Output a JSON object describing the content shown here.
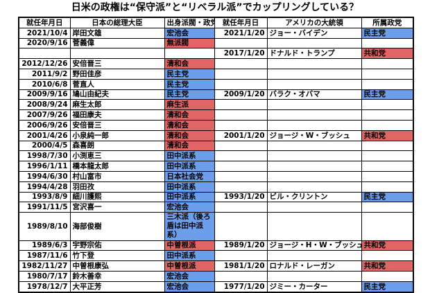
{
  "colors": {
    "conservative_red": "#E06666",
    "liberal_blue": "#6D9EEB",
    "border": "#000000",
    "background": "#FFFFFF"
  },
  "chart_data": {
    "type": "table",
    "title": "日米の政権は“保守派”と“リベラル派”でカップリングしている？",
    "columns": [
      "就任年月日",
      "日本の総理大臣",
      "出身派閥・政党",
      "就任年月日",
      "アメリカの大統領",
      "所属政党"
    ],
    "color_coding": {
      "red": "conservative",
      "blue": "liberal"
    },
    "rows": [
      {
        "jp_date": "2021/10/4",
        "jp_pm": "岸田文雄",
        "jp_faction": "宏池会",
        "jp_color": "blue",
        "us_date": "2021/1/20",
        "us_president": "ジョー・バイデン",
        "us_party": "民主党",
        "us_color": "blue",
        "tall": false
      },
      {
        "jp_date": "2020/9/16",
        "jp_pm": "菅義偉",
        "jp_faction": "無派閥",
        "jp_color": "red",
        "us_date": "",
        "us_president": "",
        "us_party": "",
        "us_color": "",
        "tall": false
      },
      {
        "jp_date": "",
        "jp_pm": "",
        "jp_faction": "",
        "jp_color": "",
        "us_date": "2017/1/20",
        "us_president": "ドナルド・トランプ",
        "us_party": "共和党",
        "us_color": "red",
        "tall": false
      },
      {
        "jp_date": "2012/12/26",
        "jp_pm": "安倍晋三",
        "jp_faction": "清和会",
        "jp_color": "red",
        "us_date": "",
        "us_president": "",
        "us_party": "",
        "us_color": "",
        "tall": false
      },
      {
        "jp_date": "2011/9/2",
        "jp_pm": "野田佳彦",
        "jp_faction": "民主党",
        "jp_color": "blue",
        "us_date": "",
        "us_president": "",
        "us_party": "",
        "us_color": "",
        "tall": false
      },
      {
        "jp_date": "2010/6/8",
        "jp_pm": "菅直人",
        "jp_faction": "民主党",
        "jp_color": "blue",
        "us_date": "",
        "us_president": "",
        "us_party": "",
        "us_color": "",
        "tall": false
      },
      {
        "jp_date": "2009/9/16",
        "jp_pm": "鳩山由紀夫",
        "jp_faction": "民主党",
        "jp_color": "blue",
        "us_date": "2009/1/20",
        "us_president": "バラク・オバマ",
        "us_party": "民主党",
        "us_color": "blue",
        "tall": false
      },
      {
        "jp_date": "2008/9/24",
        "jp_pm": "麻生太郎",
        "jp_faction": "麻生派",
        "jp_color": "red",
        "us_date": "",
        "us_president": "",
        "us_party": "",
        "us_color": "",
        "tall": false
      },
      {
        "jp_date": "2007/9/26",
        "jp_pm": "福田康夫",
        "jp_faction": "清和会",
        "jp_color": "red",
        "us_date": "",
        "us_president": "",
        "us_party": "",
        "us_color": "",
        "tall": false
      },
      {
        "jp_date": "2006/9/26",
        "jp_pm": "安倍晋三",
        "jp_faction": "清和会",
        "jp_color": "red",
        "us_date": "",
        "us_president": "",
        "us_party": "",
        "us_color": "",
        "tall": false
      },
      {
        "jp_date": "2001/4/26",
        "jp_pm": "小泉純一郎",
        "jp_faction": "清和会",
        "jp_color": "red",
        "us_date": "2001/1/20",
        "us_president": "ジョージ・W・ブッシュ",
        "us_party": "共和党",
        "us_color": "red",
        "tall": false
      },
      {
        "jp_date": "2000/4/5",
        "jp_pm": "森喜朗",
        "jp_faction": "清和会",
        "jp_color": "red",
        "us_date": "",
        "us_president": "",
        "us_party": "",
        "us_color": "",
        "tall": false
      },
      {
        "jp_date": "1998/7/30",
        "jp_pm": "小渕恵三",
        "jp_faction": "田中派系",
        "jp_color": "blue",
        "us_date": "",
        "us_president": "",
        "us_party": "",
        "us_color": "",
        "tall": false
      },
      {
        "jp_date": "1996/1/11",
        "jp_pm": "橋本龍太郎",
        "jp_faction": "田中派系",
        "jp_color": "blue",
        "us_date": "",
        "us_president": "",
        "us_party": "",
        "us_color": "",
        "tall": false
      },
      {
        "jp_date": "1994/6/30",
        "jp_pm": "村山富市",
        "jp_faction": "日本社会党",
        "jp_color": "blue",
        "us_date": "",
        "us_president": "",
        "us_party": "",
        "us_color": "",
        "tall": false
      },
      {
        "jp_date": "1994/4/28",
        "jp_pm": "羽田孜",
        "jp_faction": "田中派系",
        "jp_color": "blue",
        "us_date": "",
        "us_president": "",
        "us_party": "",
        "us_color": "",
        "tall": false
      },
      {
        "jp_date": "1993/8/9",
        "jp_pm": "細川護熙",
        "jp_faction": "田中派系",
        "jp_color": "blue",
        "us_date": "1993/1/20",
        "us_president": "ビル・クリントン",
        "us_party": "民主党",
        "us_color": "blue",
        "tall": false
      },
      {
        "jp_date": "1991/11/5",
        "jp_pm": "宮沢喜一",
        "jp_faction": "宏池会",
        "jp_color": "blue",
        "us_date": "",
        "us_president": "",
        "us_party": "",
        "us_color": "",
        "tall": false
      },
      {
        "jp_date": "1989/8/10",
        "jp_pm": "海部俊樹",
        "jp_faction": "三木派（後ろ盾は田中派系）",
        "jp_color": "blue",
        "us_date": "",
        "us_president": "",
        "us_party": "",
        "us_color": "",
        "tall": true
      },
      {
        "jp_date": "1989/6/3",
        "jp_pm": "宇野宗佑",
        "jp_faction": "中曽根派",
        "jp_color": "red",
        "us_date": "1989/1/20",
        "us_president": "ジョージ・H・W・ブッシュ",
        "us_party": "共和党",
        "us_color": "red",
        "tall": false
      },
      {
        "jp_date": "1987/11/6",
        "jp_pm": "竹下登",
        "jp_faction": "田中派系",
        "jp_color": "blue",
        "us_date": "",
        "us_president": "",
        "us_party": "",
        "us_color": "",
        "tall": false
      },
      {
        "jp_date": "1982/11/27",
        "jp_pm": "中曽根康弘",
        "jp_faction": "中曽根派",
        "jp_color": "red",
        "us_date": "1981/1/20",
        "us_president": "ロナルド・レーガン",
        "us_party": "共和党",
        "us_color": "red",
        "tall": false
      },
      {
        "jp_date": "1980/7/17",
        "jp_pm": "鈴木善幸",
        "jp_faction": "宏池会",
        "jp_color": "blue",
        "us_date": "",
        "us_president": "",
        "us_party": "",
        "us_color": "",
        "tall": false
      },
      {
        "jp_date": "1978/12/7",
        "jp_pm": "大平正芳",
        "jp_faction": "宏池会",
        "jp_color": "blue",
        "us_date": "1977/1/20",
        "us_president": "ジミー・カーター",
        "us_party": "民主党",
        "us_color": "blue",
        "tall": false
      }
    ]
  }
}
